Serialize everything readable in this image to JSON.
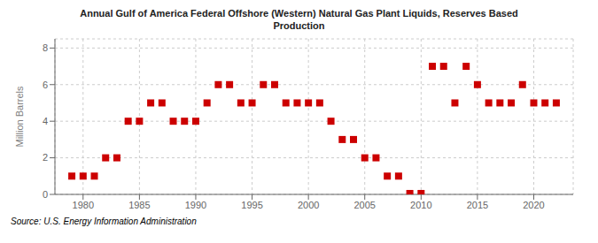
{
  "chart_data": {
    "type": "scatter",
    "title": "Annual Gulf of America Federal Offshore (Western) Natural Gas Plant Liquids, Reserves Based\nProduction",
    "ylabel": "Million Barrels",
    "annotations": [
      "Source: U.S. Energy Information Administration"
    ],
    "x": [
      1979,
      1980,
      1981,
      1982,
      1983,
      1984,
      1985,
      1986,
      1987,
      1988,
      1989,
      1990,
      1991,
      1992,
      1993,
      1994,
      1995,
      1996,
      1997,
      1998,
      1999,
      2000,
      2001,
      2002,
      2003,
      2004,
      2005,
      2006,
      2007,
      2008,
      2009,
      2010,
      2011,
      2012,
      2013,
      2014,
      2015,
      2016,
      2017,
      2018,
      2019,
      2020,
      2021,
      2022
    ],
    "values": [
      1.0,
      1.0,
      1.0,
      2.0,
      2.0,
      4.0,
      4.0,
      5.0,
      5.0,
      4.0,
      4.0,
      4.0,
      5.0,
      6.0,
      6.0,
      5.0,
      5.0,
      6.0,
      6.0,
      5.0,
      5.0,
      5.0,
      5.0,
      4.0,
      3.0,
      3.0,
      2.0,
      2.0,
      1.0,
      1.0,
      0.05,
      0.05,
      7.0,
      7.0,
      5.0,
      7.0,
      6.0,
      5.0,
      5.0,
      5.0,
      6.0,
      5.0,
      5.0,
      5.0
    ],
    "color": "#cc0000",
    "marker": "square",
    "xlim": [
      1977.5,
      2023.5
    ],
    "ylim": [
      0,
      8.5
    ],
    "xticks": [
      1980,
      1985,
      1990,
      1995,
      2000,
      2005,
      2010,
      2015,
      2020
    ],
    "yticks": [
      0,
      2,
      4,
      6,
      8
    ],
    "grid": true
  }
}
